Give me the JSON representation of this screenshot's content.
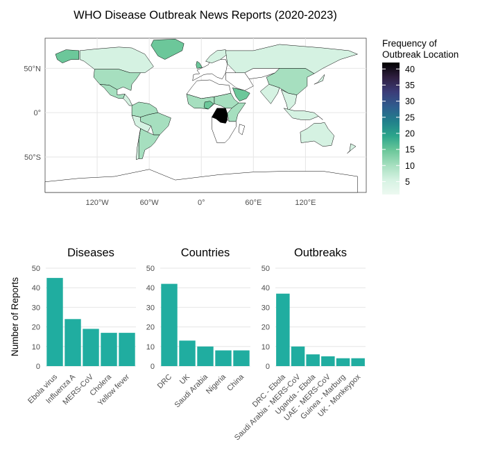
{
  "title": "WHO Disease Outbreak News Reports (2020-2023)",
  "colors": {
    "bar": "#20ADA0",
    "grid": "#E6E6E6",
    "country_fill_low": "#D5F2E2",
    "country_fill_mid": "#A6DFBF",
    "country_fill_high": "#6CC79A",
    "drc": "#000000",
    "country_border": "#000000",
    "ocean": "#FFFFFF"
  },
  "map": {
    "x_ticks": [
      "120°W",
      "60°W",
      "0°",
      "60°E",
      "120°E"
    ],
    "y_ticks": [
      "50°N",
      "0°",
      "50°S"
    ]
  },
  "legend": {
    "title_line1": "Frequency of",
    "title_line2": "Outbreak Location",
    "ticks": [
      "40",
      "35",
      "30",
      "25",
      "20",
      "15",
      "10",
      "5"
    ],
    "tick_values": [
      40,
      35,
      30,
      25,
      20,
      15,
      10,
      5
    ],
    "range": [
      1,
      42
    ],
    "gradient": [
      "#000000",
      "#2F1E3F",
      "#3B3C78",
      "#2F5C8E",
      "#217F8B",
      "#2CA58B",
      "#6CC79A",
      "#A6DFBF",
      "#D5F2E2",
      "#EDF9F1"
    ]
  },
  "y_axis_label": "Number of Reports",
  "chart_data": [
    {
      "type": "bar",
      "title": "Diseases",
      "categories": [
        "Ebola virus",
        "Influenza A",
        "MERS-CoV",
        "Cholera",
        "Yellow fever"
      ],
      "values": [
        45,
        24,
        19,
        17,
        17
      ],
      "ylim": [
        0,
        50
      ],
      "y_ticks": [
        "0",
        "10",
        "20",
        "30",
        "40",
        "50"
      ]
    },
    {
      "type": "bar",
      "title": "Countries",
      "categories": [
        "DRC",
        "UK",
        "Saudi Arabia",
        "Nigeria",
        "China"
      ],
      "values": [
        42,
        13,
        10,
        8,
        8
      ],
      "ylim": [
        0,
        50
      ],
      "y_ticks": [
        "0",
        "10",
        "20",
        "30",
        "40",
        "50"
      ]
    },
    {
      "type": "bar",
      "title": "Outbreaks",
      "categories": [
        "DRC - Ebola",
        "Saudi Arabia - MERS-CoV",
        "Uganda - Ebola",
        "UAE - MERS-CoV",
        "Guinea - Marburg",
        "UK - Monkeypox"
      ],
      "values": [
        37,
        10,
        6,
        5,
        4,
        4
      ],
      "ylim": [
        0,
        50
      ],
      "y_ticks": [
        "0",
        "10",
        "20",
        "30",
        "40",
        "50"
      ]
    }
  ]
}
